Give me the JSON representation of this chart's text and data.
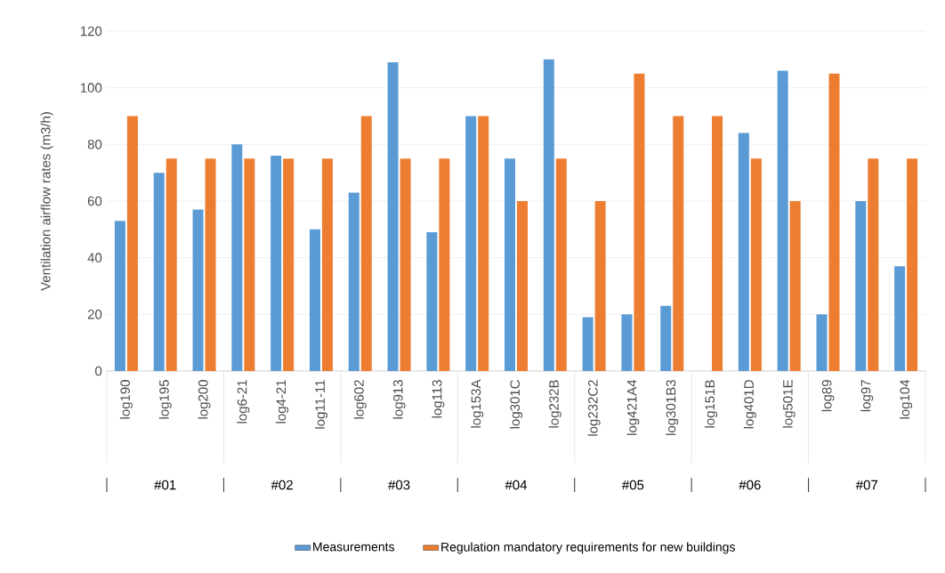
{
  "chart_data": {
    "type": "bar",
    "ylabel": "Ventilation airflow rates (m3/h)",
    "categories": [
      "log190",
      "log195",
      "log200",
      "log6-21",
      "log4-21",
      "log11-11",
      "log602",
      "log913",
      "log113",
      "log153A",
      "log301C",
      "log232B",
      "log232C2",
      "log421A4",
      "log301B3",
      "log151B",
      "log401D",
      "log501E",
      "log89",
      "log97",
      "log104"
    ],
    "series": [
      {
        "name": "Measurements",
        "color": "#5b9bd5",
        "values": [
          53,
          70,
          57,
          80,
          76,
          50,
          63,
          109,
          49,
          90,
          75,
          110,
          19,
          20,
          23,
          null,
          84,
          106,
          20,
          60,
          37
        ]
      },
      {
        "name": "Regulation mandatory requirements for new buildings",
        "color": "#ed7d31",
        "values": [
          90,
          75,
          75,
          75,
          75,
          75,
          90,
          75,
          75,
          90,
          60,
          75,
          60,
          105,
          90,
          90,
          75,
          60,
          105,
          75,
          75
        ]
      }
    ],
    "ylim": [
      0,
      120
    ],
    "yticks": [
      0,
      20,
      40,
      60,
      80,
      100,
      120
    ],
    "grid": "y",
    "legend": "bottom",
    "annotations": [
      "#01",
      "#02",
      "#03",
      "#04",
      "#05",
      "#06",
      "#07"
    ]
  }
}
